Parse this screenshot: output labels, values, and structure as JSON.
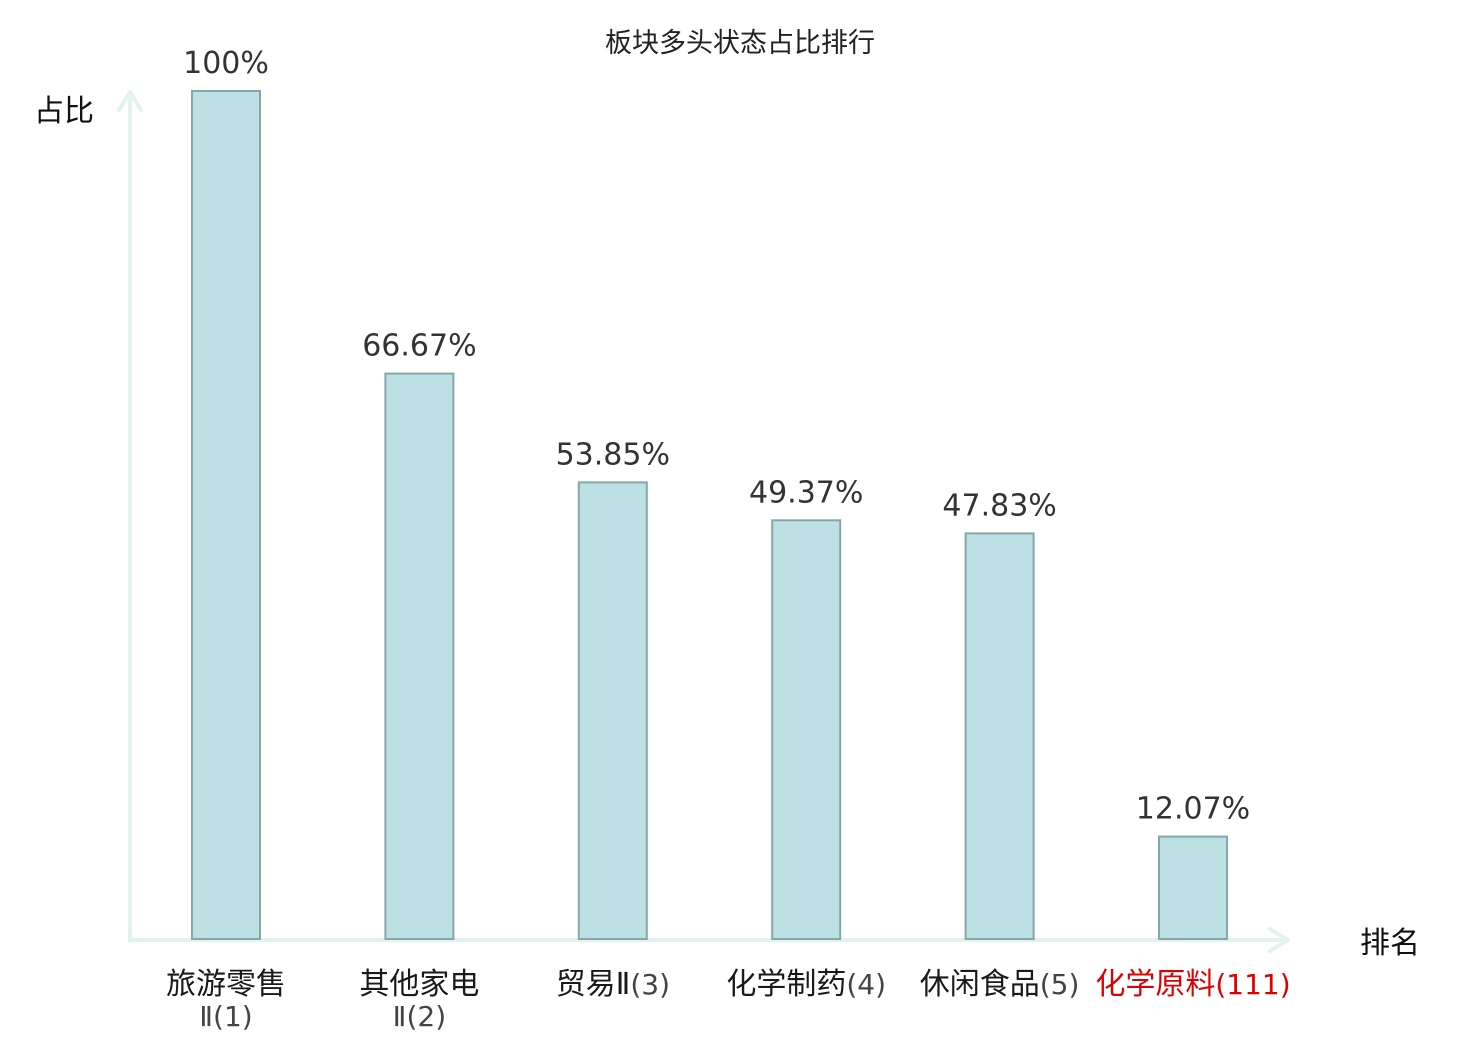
{
  "chart_data": {
    "type": "bar",
    "title": "板块多头状态占比排行",
    "ylabel": "占比",
    "xlabel": "排名",
    "ylim": [
      0,
      100
    ],
    "grid": false,
    "categories": [
      {
        "name": "旅游零售",
        "rank": "Ⅱ(1)",
        "highlight": false
      },
      {
        "name": "其他家电",
        "rank": "Ⅱ(2)",
        "highlight": false
      },
      {
        "name": "贸易Ⅱ",
        "rank": "(3)",
        "highlight": false
      },
      {
        "name": "化学制药",
        "rank": "(4)",
        "highlight": false
      },
      {
        "name": "休闲食品",
        "rank": "(5)",
        "highlight": false
      },
      {
        "name": "化学原料",
        "rank": "(111)",
        "highlight": true
      }
    ],
    "values": [
      100,
      66.67,
      53.85,
      49.37,
      47.83,
      12.07
    ],
    "value_labels": [
      "100%",
      "66.67%",
      "53.85%",
      "49.37%",
      "47.83%",
      "12.07%"
    ]
  },
  "colors": {
    "bar_fill": "#bce0e3",
    "bar_stroke": "#86a7aa",
    "axis": "#e1f2ef",
    "highlight": "#dd0000"
  }
}
